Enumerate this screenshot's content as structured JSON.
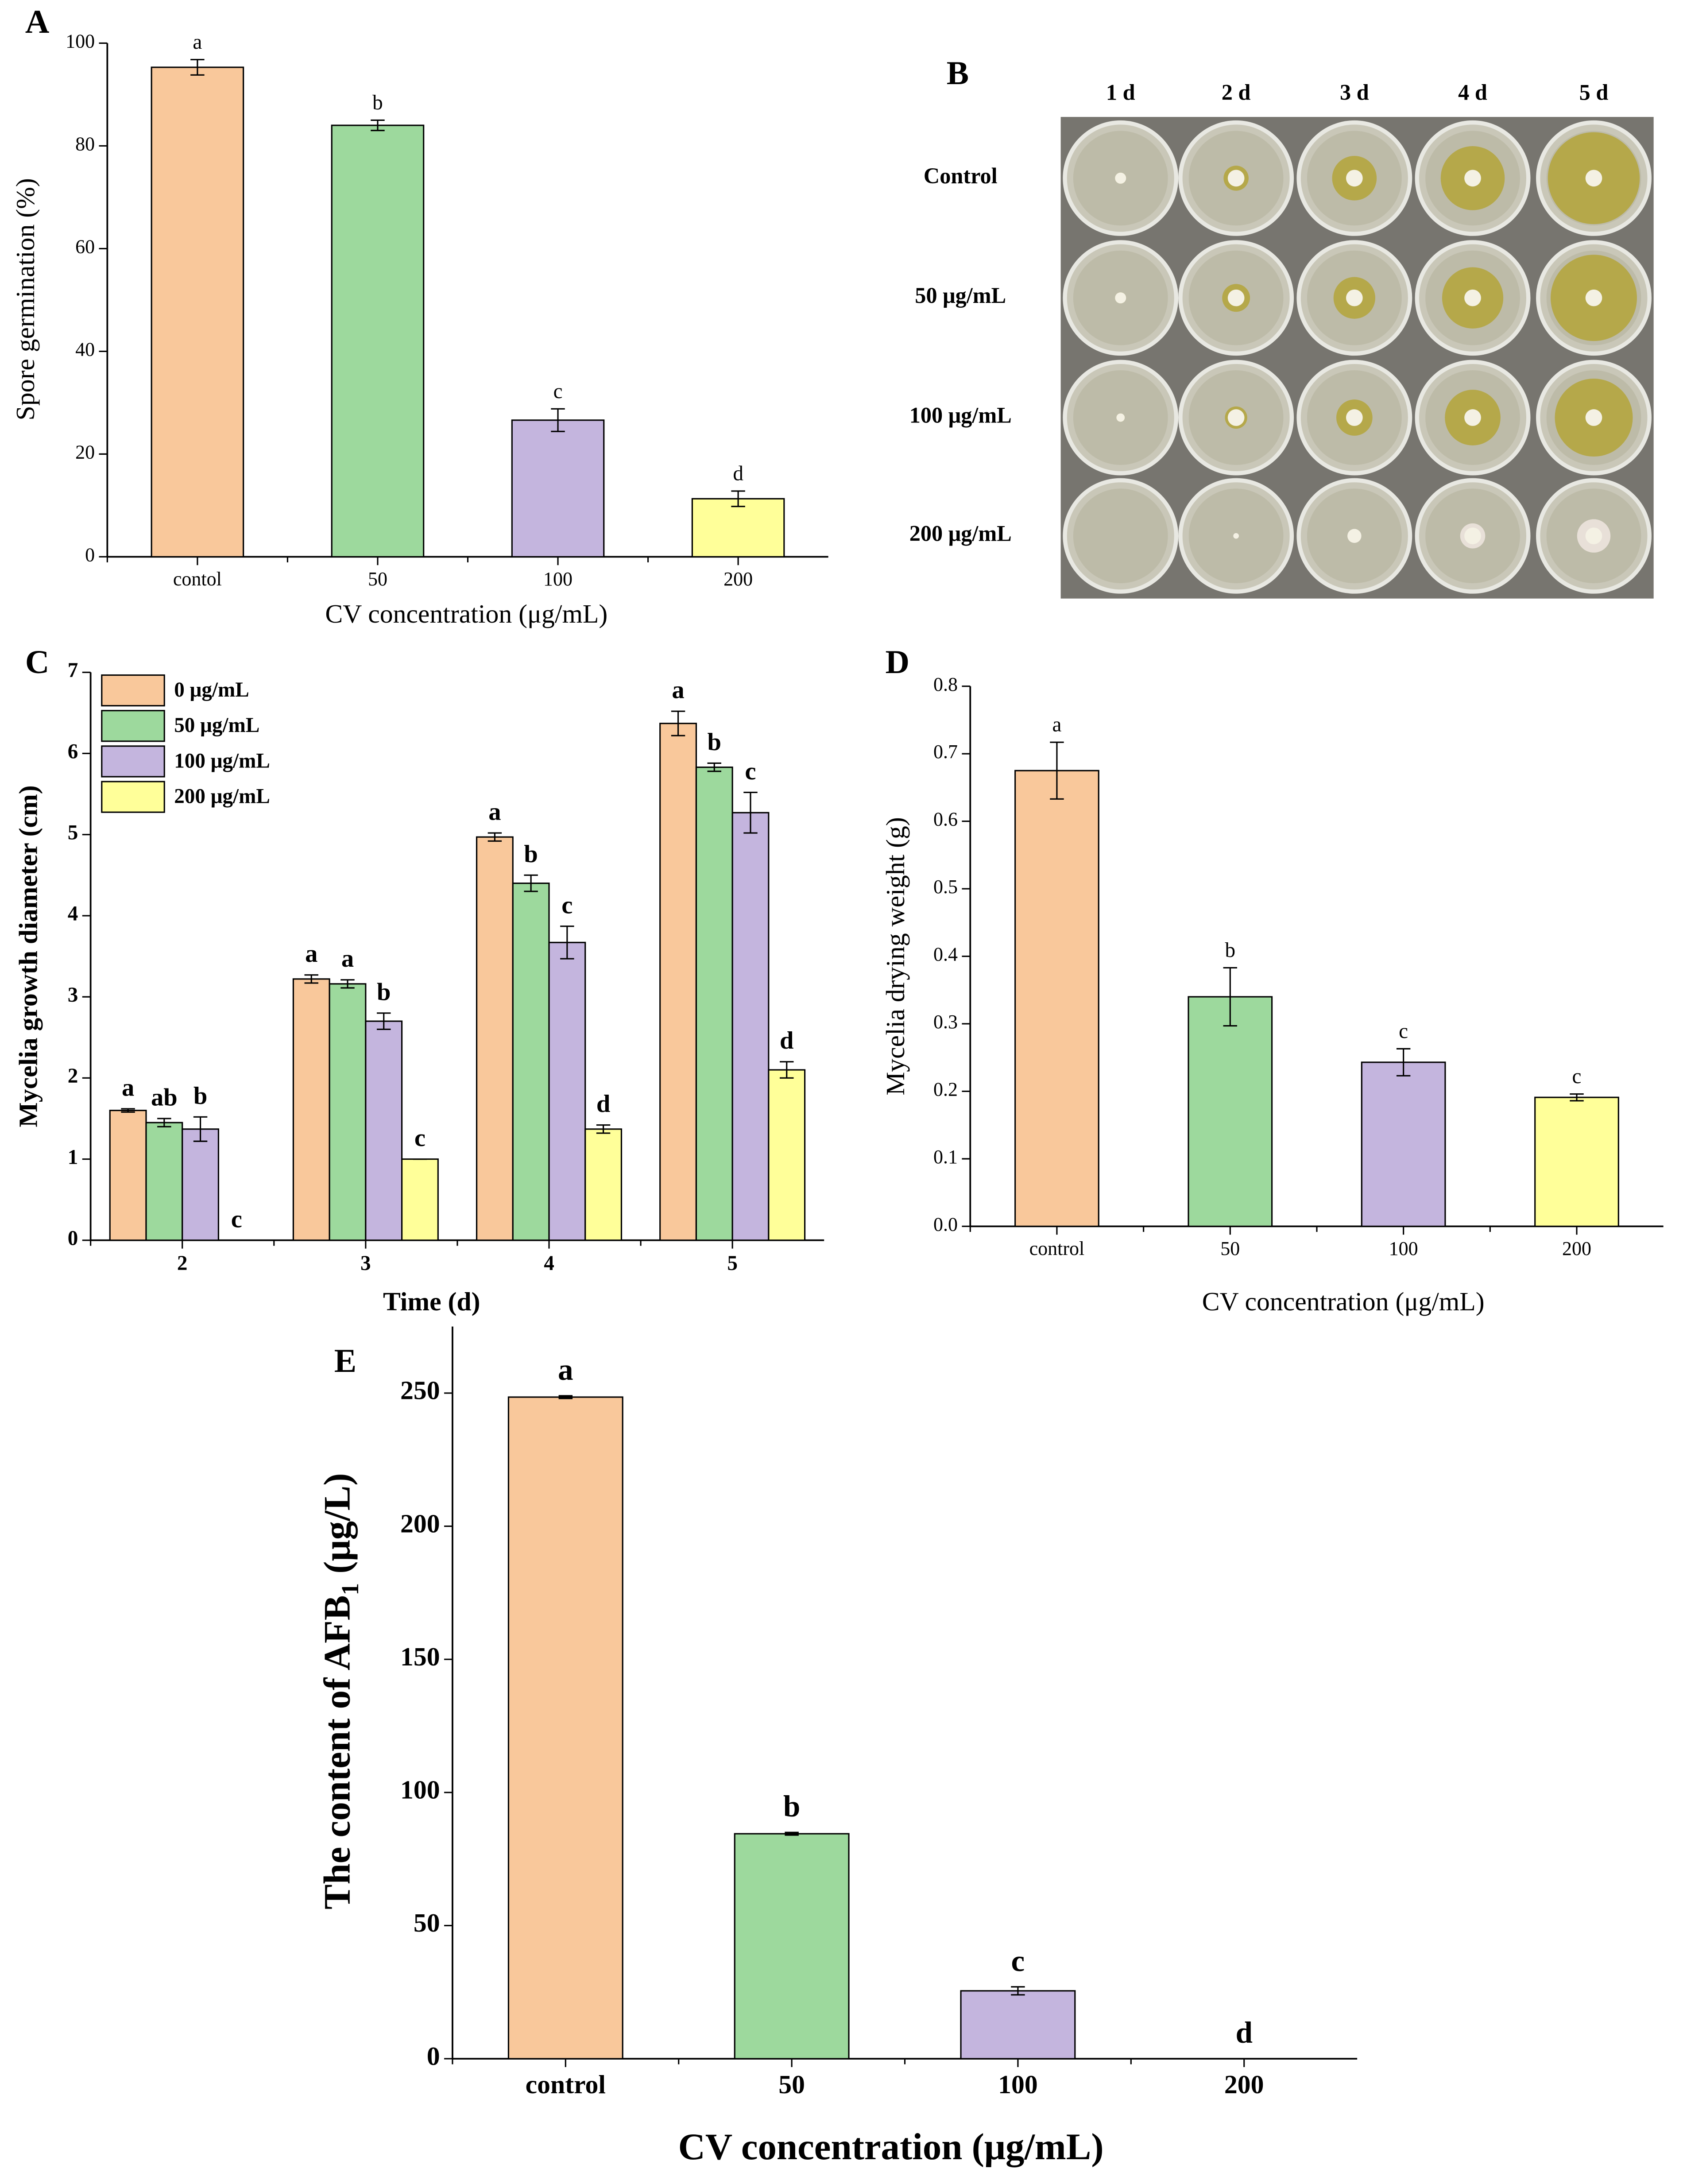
{
  "chart_data": [
    {
      "type": "bar",
      "label": "A",
      "categories": [
        "contol",
        "50",
        "100",
        "200"
      ],
      "values": [
        95.3,
        84.0,
        26.6,
        11.3
      ],
      "errors": [
        1.5,
        1.0,
        2.2,
        1.5
      ],
      "letters": [
        "a",
        "b",
        "c",
        "d"
      ],
      "colors": [
        "#f9c89b",
        "#9dd99d",
        "#c4b5de",
        "#ffff99"
      ],
      "xlabel": "CV concentration (μg/mL)",
      "ylabel": "Spore germination (%)",
      "ylim": [
        0,
        100
      ],
      "yticks": [
        0,
        20,
        40,
        60,
        80,
        100
      ]
    },
    {
      "type": "bar",
      "label": "C",
      "categories": [
        "2",
        "3",
        "4",
        "5"
      ],
      "series": [
        {
          "name": "0 μg/mL",
          "color": "#f9c89b",
          "values": [
            1.6,
            3.22,
            4.97,
            6.37
          ],
          "errors": [
            0.02,
            0.05,
            0.05,
            0.15
          ],
          "letters": [
            "a",
            "a",
            "a",
            "a"
          ]
        },
        {
          "name": "50 μg/mL",
          "color": "#9dd99d",
          "values": [
            1.45,
            3.16,
            4.4,
            5.83
          ],
          "errors": [
            0.05,
            0.05,
            0.1,
            0.05
          ],
          "letters": [
            "ab",
            "a",
            "b",
            "b"
          ]
        },
        {
          "name": "100 μg/mL",
          "color": "#c4b5de",
          "values": [
            1.37,
            2.7,
            3.67,
            5.27
          ],
          "errors": [
            0.15,
            0.1,
            0.2,
            0.25
          ],
          "letters": [
            "b",
            "b",
            "c",
            "c"
          ]
        },
        {
          "name": "200 μg/mL",
          "color": "#ffff99",
          "values": [
            0,
            1.0,
            1.37,
            2.1
          ],
          "errors": [
            0,
            0,
            0.05,
            0.1
          ],
          "letters": [
            "c",
            "c",
            "d",
            "d"
          ]
        }
      ],
      "xlabel": "Time (d)",
      "ylabel": "Mycelia growth diameter (cm)",
      "ylim": [
        0,
        7
      ],
      "yticks": [
        0,
        1,
        2,
        3,
        4,
        5,
        6,
        7
      ],
      "legend": "upper left"
    },
    {
      "type": "bar",
      "label": "D",
      "categories": [
        "control",
        "50",
        "100",
        "200"
      ],
      "values": [
        0.675,
        0.34,
        0.243,
        0.191
      ],
      "errors": [
        0.042,
        0.043,
        0.02,
        0.005
      ],
      "letters": [
        "a",
        "b",
        "c",
        "c"
      ],
      "colors": [
        "#f9c89b",
        "#9dd99d",
        "#c4b5de",
        "#ffff99"
      ],
      "xlabel": "CV concentration (μg/mL)",
      "ylabel": "Mycelia drying weight (g)",
      "ylim": [
        0,
        0.8
      ],
      "yticks": [
        {
          "value": 0,
          "label": "0.0"
        },
        0.1,
        0.2,
        0.3,
        0.4,
        0.5,
        0.6,
        0.7,
        0.8
      ]
    },
    {
      "type": "bar",
      "label": "E",
      "categories": [
        "control",
        "50",
        "100",
        "200"
      ],
      "values": [
        248.5,
        84.5,
        25.5,
        0
      ],
      "errors": [
        0.5,
        0.5,
        1.5,
        0
      ],
      "letters": [
        "a",
        "b",
        "c",
        "d"
      ],
      "colors": [
        "#f9c89b",
        "#9dd99d",
        "#c4b5de",
        "#ffff99"
      ],
      "xlabel": "CV concentration (μg/mL)",
      "ylabel": "The content of AFB",
      "ylabel_subscript": "1",
      "ylabel_unit": " (μg/L)",
      "ylim": [
        0,
        275
      ],
      "yticks": [
        0,
        50,
        100,
        150,
        200,
        250
      ]
    }
  ],
  "photo_panel": {
    "label": "B",
    "columns": [
      "1 d",
      "2 d",
      "3 d",
      "4 d",
      "5 d"
    ],
    "rows": [
      "Control",
      "50 μg/mL",
      "100 μg/mL",
      "200 μg/mL"
    ]
  }
}
